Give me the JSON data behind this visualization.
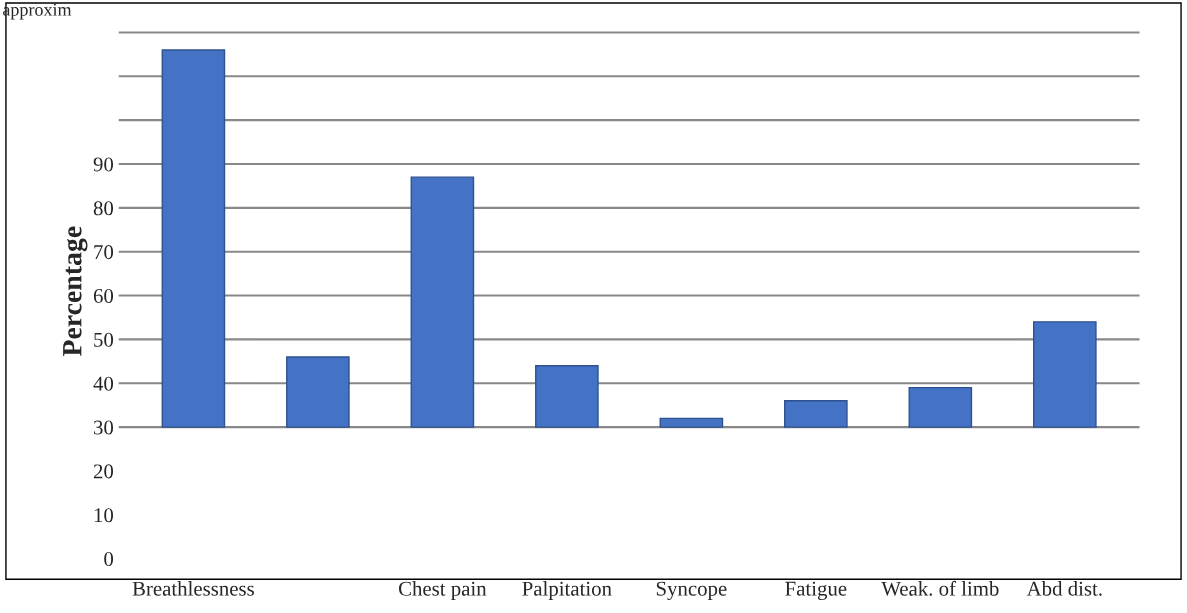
{
  "chart_data": {
    "type": "bar",
    "categories": [
      "Breathlessness",
      null,
      "Chest pain",
      "Palpitation",
      "Syncope",
      "Fatigue",
      "Weak. of limb",
      "Abd dist."
    ],
    "values": [
      86,
      16,
      57,
      14,
      2,
      6,
      9,
      24
    ],
    "base": [
      30,
      30,
      30,
      30,
      30,
      30,
      30,
      30
    ],
    "color": "#4472c4",
    "ylabel": "Percentage",
    "ylim": [
      -4,
      126
    ],
    "yticks": [
      0,
      10,
      20,
      30,
      40,
      50,
      60,
      70,
      80,
      90,
      {
        "value": 100,
        "label": null
      },
      {
        "value": 110,
        "label": null
      },
      {
        "value": 120,
        "label": null
      }
    ],
    "grid": "y",
    "annotations": [
      "approxim"
    ]
  }
}
